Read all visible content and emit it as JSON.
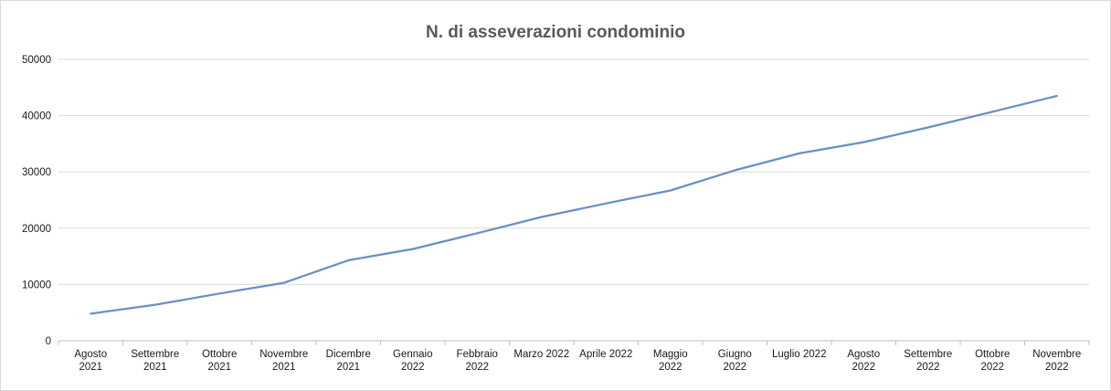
{
  "chart_data": {
    "type": "line",
    "title": "N. di asseverazioni condominio",
    "xlabel": "",
    "ylabel": "",
    "ylim": [
      0,
      50000
    ],
    "yticks": [
      0,
      10000,
      20000,
      30000,
      40000,
      50000
    ],
    "grid": true,
    "legend": "none",
    "categories": [
      [
        "Agosto",
        "2021"
      ],
      [
        "Settembre",
        "2021"
      ],
      [
        "Ottobre",
        "2021"
      ],
      [
        "Novembre",
        "2021"
      ],
      [
        "Dicembre",
        "2021"
      ],
      [
        "Gennaio",
        "2022"
      ],
      [
        "Febbraio",
        "2022"
      ],
      [
        "Marzo 2022"
      ],
      [
        "Aprile 2022"
      ],
      [
        "Maggio",
        "2022"
      ],
      [
        "Giugno",
        "2022"
      ],
      [
        "Luglio 2022"
      ],
      [
        "Agosto",
        "2022"
      ],
      [
        "Settembre",
        "2022"
      ],
      [
        "Ottobre",
        "2022"
      ],
      [
        "Novembre",
        "2022"
      ]
    ],
    "series": [
      {
        "name": "N. di asseverazioni condominio",
        "color": "#6a8fc7",
        "values": [
          4800,
          6400,
          8400,
          10300,
          14300,
          16300,
          19100,
          22000,
          24400,
          26700,
          30300,
          33300,
          35300,
          37900,
          40700,
          43500
        ]
      }
    ]
  }
}
